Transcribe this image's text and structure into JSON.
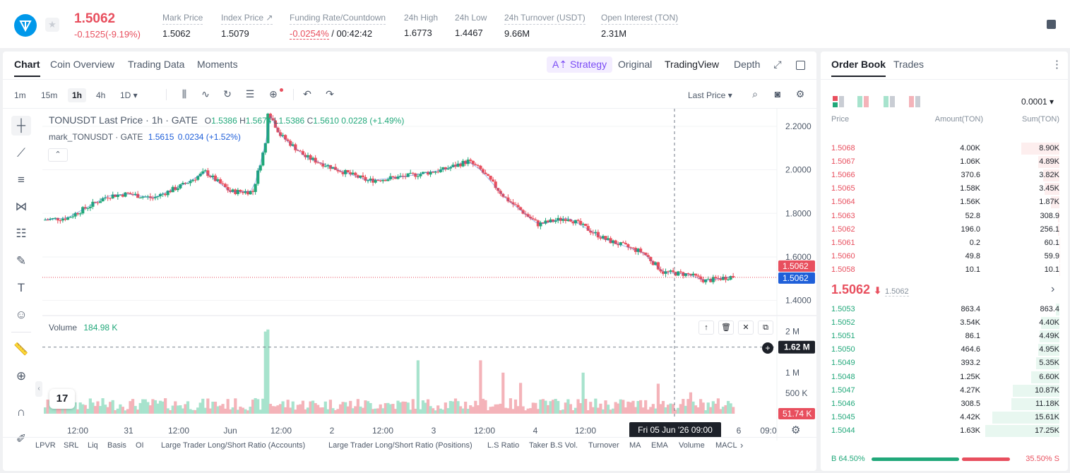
{
  "header": {
    "last_price": "1.5062",
    "change": "-0.1525(-9.19%)",
    "stats": [
      {
        "label": "Mark Price",
        "value": "1.5062"
      },
      {
        "label": "Index Price ↗",
        "value": "1.5079"
      },
      {
        "label": "Funding Rate/Countdown",
        "value_red": "-0.0254%",
        "value": " / 00:42:42"
      },
      {
        "label": "24h High",
        "value": "1.6773"
      },
      {
        "label": "24h Low",
        "value": "1.4467"
      },
      {
        "label": "24h Turnover (USDT)",
        "value": "9.66M"
      },
      {
        "label": "Open Interest (TON)",
        "value": "2.31M"
      }
    ]
  },
  "chart_tabs": [
    "Chart",
    "Coin Overview",
    "Trading Data",
    "Moments"
  ],
  "view_tabs": {
    "strategy": "A⇡ Strategy",
    "original": "Original",
    "tradingview": "TradingView",
    "depth": "Depth"
  },
  "intervals": [
    "1m",
    "15m",
    "1h",
    "4h",
    "1D ▾"
  ],
  "price_type": "Last Price ▾",
  "legend": {
    "symbol": "TONUSDT Last Price · 1h · GATE",
    "o_lbl": "O",
    "o": "1.5386",
    "h_lbl": "H",
    "h": "1.5674",
    "l_lbl": "L",
    "l": "1.5386",
    "c_lbl": "C",
    "c": "1.5610",
    "chg": "0.0228 (+1.49%)",
    "mark": "mark_TONUSDT · GATE",
    "mark_val": "1.5615",
    "mark_chg": "0.0234 (+1.52%)"
  },
  "volume_legend": {
    "label": "Volume",
    "value": "184.98 K"
  },
  "price_axis": [
    "2.2000",
    "2.0000",
    "1.8000",
    "1.6000",
    "1.4000"
  ],
  "last_price_tag": "1.5062",
  "mark_price_tag": "1.5062",
  "volume_axis": [
    "2 M",
    "1 M",
    "500 K"
  ],
  "crosshair_volume": "1.62 M",
  "volume_tag": "51.74 K",
  "time_axis": [
    "12:00",
    "31",
    "12:00",
    "Jun",
    "12:00",
    "2",
    "12:00",
    "3",
    "12:00",
    "4",
    "12:00",
    "6",
    "09:0"
  ],
  "crosshair_time": "Fri 05 Jun '26   09:00",
  "indicators": [
    "LPVR",
    "SRL",
    "Liq",
    "Basis",
    "OI",
    "Large Trader Long/Short Ratio (Accounts)",
    "Large Trader Long/Short Ratio (Positions)",
    "L.S Ratio",
    "Taker B.S Vol.",
    "Turnover",
    "MA",
    "EMA",
    "Volume",
    "MACL"
  ],
  "chart_data": {
    "type": "candlestick",
    "price_range": [
      1.36,
      2.3
    ],
    "x": [
      "12:00",
      "31",
      "12:00",
      "Jun",
      "12:00",
      "2",
      "12:00",
      "3",
      "12:00",
      "4",
      "12:00",
      "6"
    ],
    "anchors": [
      [
        0,
        1.77
      ],
      [
        10,
        1.78
      ],
      [
        18,
        1.83
      ],
      [
        26,
        1.88
      ],
      [
        34,
        1.89
      ],
      [
        44,
        1.87
      ],
      [
        56,
        1.93
      ],
      [
        65,
        1.99
      ],
      [
        75,
        1.9
      ],
      [
        84,
        1.9
      ],
      [
        89,
        2.12
      ],
      [
        90,
        2.27
      ],
      [
        95,
        2.16
      ],
      [
        105,
        2.06
      ],
      [
        118,
        2.0
      ],
      [
        130,
        1.95
      ],
      [
        145,
        1.97
      ],
      [
        160,
        2.0
      ],
      [
        170,
        2.04
      ],
      [
        175,
        2.0
      ],
      [
        185,
        1.87
      ],
      [
        198,
        1.75
      ],
      [
        210,
        1.78
      ],
      [
        225,
        1.68
      ],
      [
        240,
        1.62
      ],
      [
        248,
        1.53
      ],
      [
        258,
        1.52
      ],
      [
        265,
        1.49
      ],
      [
        275,
        1.51
      ]
    ],
    "volume_spikes": [
      [
        88,
        2000000
      ],
      [
        89,
        2050000
      ],
      [
        106,
        300000
      ],
      [
        149,
        1300000
      ],
      [
        174,
        1300000
      ],
      [
        183,
        1000000
      ],
      [
        190,
        750000
      ],
      [
        215,
        1000000
      ],
      [
        245,
        730000
      ],
      [
        258,
        520000
      ]
    ]
  },
  "order_book": {
    "tabs": [
      "Order Book",
      "Trades"
    ],
    "precision": "0.0001 ▾",
    "columns": [
      "Price",
      "Amount(TON)",
      "Sum(TON)"
    ],
    "asks": [
      {
        "price": "1.5068",
        "amount": "4.00K",
        "sum": "8.90K",
        "depth": 0.51
      },
      {
        "price": "1.5067",
        "amount": "1.06K",
        "sum": "4.89K",
        "depth": 0.28
      },
      {
        "price": "1.5066",
        "amount": "370.6",
        "sum": "3.82K",
        "depth": 0.22
      },
      {
        "price": "1.5065",
        "amount": "1.58K",
        "sum": "3.45K",
        "depth": 0.2
      },
      {
        "price": "1.5064",
        "amount": "1.56K",
        "sum": "1.87K",
        "depth": 0.11
      },
      {
        "price": "1.5063",
        "amount": "52.8",
        "sum": "308.9",
        "depth": 0.018
      },
      {
        "price": "1.5062",
        "amount": "196.0",
        "sum": "256.1",
        "depth": 0.015
      },
      {
        "price": "1.5061",
        "amount": "0.2",
        "sum": "60.1",
        "depth": 0.004
      },
      {
        "price": "1.5060",
        "amount": "49.8",
        "sum": "59.9",
        "depth": 0.004
      },
      {
        "price": "1.5058",
        "amount": "10.1",
        "sum": "10.1",
        "depth": 0.001
      }
    ],
    "mid_price": "1.5062",
    "mid_arrow": "⬇",
    "mid_mark": "1.5062",
    "bids": [
      {
        "price": "1.5053",
        "amount": "863.4",
        "sum": "863.4",
        "depth": 0.05
      },
      {
        "price": "1.5052",
        "amount": "3.54K",
        "sum": "4.40K",
        "depth": 0.25
      },
      {
        "price": "1.5051",
        "amount": "86.1",
        "sum": "4.49K",
        "depth": 0.26
      },
      {
        "price": "1.5050",
        "amount": "464.6",
        "sum": "4.95K",
        "depth": 0.28
      },
      {
        "price": "1.5049",
        "amount": "393.2",
        "sum": "5.35K",
        "depth": 0.31
      },
      {
        "price": "1.5048",
        "amount": "1.25K",
        "sum": "6.60K",
        "depth": 0.38
      },
      {
        "price": "1.5047",
        "amount": "4.27K",
        "sum": "10.87K",
        "depth": 0.62
      },
      {
        "price": "1.5046",
        "amount": "308.5",
        "sum": "11.18K",
        "depth": 0.64
      },
      {
        "price": "1.5045",
        "amount": "4.42K",
        "sum": "15.61K",
        "depth": 0.9
      },
      {
        "price": "1.5044",
        "amount": "1.63K",
        "sum": "17.25K",
        "depth": 0.99
      }
    ],
    "buy_label": "B 64.50%",
    "sell_label": "35.50% S",
    "buy_ratio": 0.645
  },
  "colors": {
    "up": "#21a87a",
    "down": "#e84f5e",
    "accent": "#7b4cf5",
    "mark": "#1f5fd9"
  }
}
